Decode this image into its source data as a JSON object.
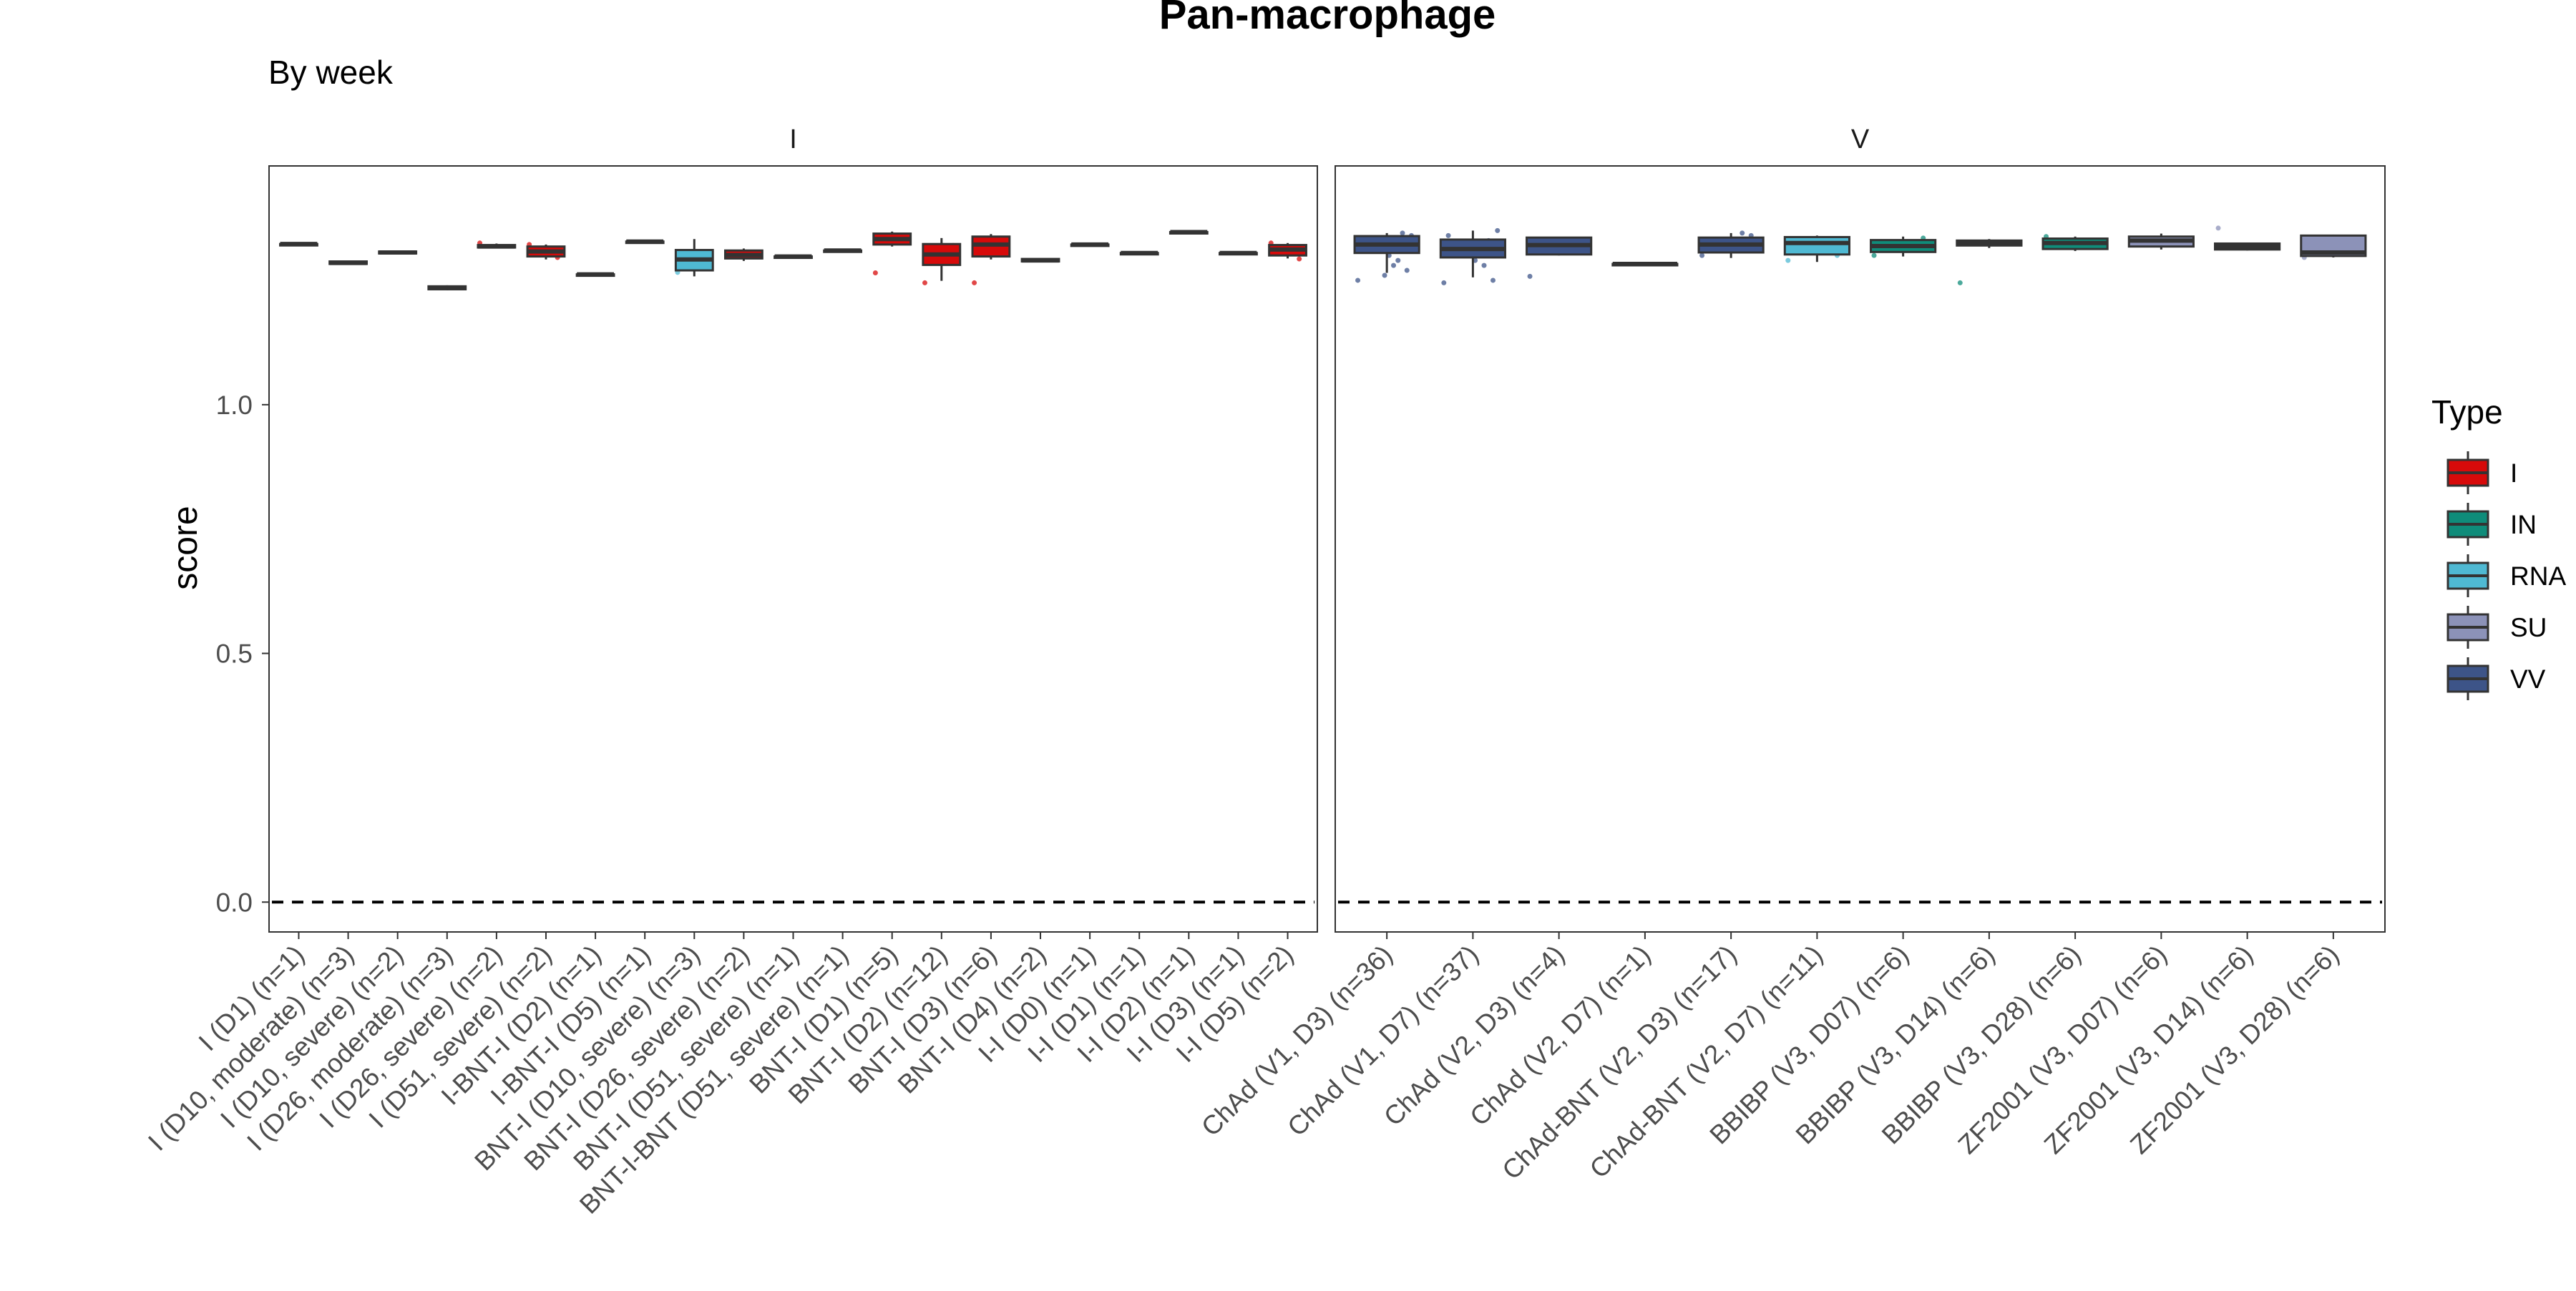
{
  "chart_data": {
    "type": "box",
    "title": "Pan-macrophage",
    "subtitle": "By week",
    "ylabel": "score",
    "xlabel": "",
    "ylim": [
      -0.06,
      1.48
    ],
    "y_ticks": [
      0.0,
      0.5,
      1.0
    ],
    "y_tick_labels": [
      "0.0",
      "0.5",
      "1.0"
    ],
    "reference_line": {
      "y": 0,
      "style": "dashed"
    },
    "grid": false,
    "legend": {
      "title": "Type",
      "placement": "right",
      "items": [
        {
          "label": "I",
          "color": "#D70A0A"
        },
        {
          "label": "IN",
          "color": "#0F8C7A"
        },
        {
          "label": "RNA",
          "color": "#4FB9D3"
        },
        {
          "label": "SU",
          "color": "#8C92B8"
        },
        {
          "label": "VV",
          "color": "#3D5488"
        }
      ]
    },
    "panels": [
      {
        "strip": "I",
        "categories": [
          {
            "label": "I (D1) (n=1)",
            "type": "I",
            "q1": 1.323,
            "median": 1.323,
            "q3": 1.323,
            "lo": 1.323,
            "hi": 1.323,
            "points": []
          },
          {
            "label": "I (D10, moderate) (n=3)",
            "type": "I",
            "q1": 1.283,
            "median": 1.285,
            "q3": 1.288,
            "lo": 1.283,
            "hi": 1.289,
            "points": []
          },
          {
            "label": "I (D10, severe) (n=2)",
            "type": "I",
            "q1": 1.304,
            "median": 1.306,
            "q3": 1.308,
            "lo": 1.303,
            "hi": 1.309,
            "points": []
          },
          {
            "label": "I (D26, moderate) (n=3)",
            "type": "I",
            "q1": 1.232,
            "median": 1.235,
            "q3": 1.238,
            "lo": 1.23,
            "hi": 1.24,
            "points": []
          },
          {
            "label": "I (D26, severe) (n=2)",
            "type": "I",
            "q1": 1.316,
            "median": 1.318,
            "q3": 1.321,
            "lo": 1.315,
            "hi": 1.324,
            "points": [
              1.325
            ]
          },
          {
            "label": "I (D51, severe) (n=2)",
            "type": "I",
            "q1": 1.298,
            "median": 1.308,
            "q3": 1.318,
            "lo": 1.292,
            "hi": 1.322,
            "points": [
              1.322,
              1.296
            ]
          },
          {
            "label": "I-BNT-I (D2) (n=1)",
            "type": "I",
            "q1": 1.262,
            "median": 1.262,
            "q3": 1.262,
            "lo": 1.262,
            "hi": 1.262,
            "points": []
          },
          {
            "label": "I-BNT-I (D5) (n=1)",
            "type": "I",
            "q1": 1.328,
            "median": 1.328,
            "q3": 1.328,
            "lo": 1.328,
            "hi": 1.328,
            "points": []
          },
          {
            "label": "BNT-I (D10, severe) (n=3)",
            "type": "RNA",
            "q1": 1.27,
            "median": 1.292,
            "q3": 1.311,
            "lo": 1.258,
            "hi": 1.333,
            "points": [
              1.266
            ]
          },
          {
            "label": "BNT-I (D26, severe) (n=2)",
            "type": "I",
            "q1": 1.294,
            "median": 1.301,
            "q3": 1.31,
            "lo": 1.289,
            "hi": 1.314,
            "points": []
          },
          {
            "label": "BNT-I (D51, severe) (n=1)",
            "type": "I",
            "q1": 1.298,
            "median": 1.298,
            "q3": 1.298,
            "lo": 1.298,
            "hi": 1.298,
            "points": []
          },
          {
            "label": "BNT-I-BNT (D51, severe) (n=1)",
            "type": "I",
            "q1": 1.31,
            "median": 1.31,
            "q3": 1.31,
            "lo": 1.31,
            "hi": 1.31,
            "points": []
          },
          {
            "label": "BNT-I (D1) (n=5)",
            "type": "I",
            "q1": 1.322,
            "median": 1.333,
            "q3": 1.344,
            "lo": 1.318,
            "hi": 1.348,
            "points": [
              1.265,
              1.335
            ]
          },
          {
            "label": "BNT-I (D2) (n=12)",
            "type": "I",
            "q1": 1.281,
            "median": 1.302,
            "q3": 1.323,
            "lo": 1.249,
            "hi": 1.335,
            "points": [
              1.245,
              1.32,
              1.31,
              1.29
            ]
          },
          {
            "label": "BNT-I (D3) (n=6)",
            "type": "I",
            "q1": 1.298,
            "median": 1.322,
            "q3": 1.338,
            "lo": 1.292,
            "hi": 1.343,
            "points": [
              1.245
            ]
          },
          {
            "label": "BNT-I (D4) (n=2)",
            "type": "I",
            "q1": 1.288,
            "median": 1.29,
            "q3": 1.293,
            "lo": 1.287,
            "hi": 1.294,
            "points": []
          },
          {
            "label": "I-I (D0) (n=1)",
            "type": "I",
            "q1": 1.322,
            "median": 1.322,
            "q3": 1.322,
            "lo": 1.322,
            "hi": 1.322,
            "points": []
          },
          {
            "label": "I-I (D1) (n=1)",
            "type": "I",
            "q1": 1.305,
            "median": 1.305,
            "q3": 1.305,
            "lo": 1.305,
            "hi": 1.305,
            "points": []
          },
          {
            "label": "I-I (D2) (n=1)",
            "type": "I",
            "q1": 1.347,
            "median": 1.347,
            "q3": 1.347,
            "lo": 1.347,
            "hi": 1.347,
            "points": []
          },
          {
            "label": "I-I (D3) (n=1)",
            "type": "I",
            "q1": 1.305,
            "median": 1.305,
            "q3": 1.305,
            "lo": 1.305,
            "hi": 1.305,
            "points": []
          },
          {
            "label": "I-I (D5) (n=2)",
            "type": "I",
            "q1": 1.3,
            "median": 1.312,
            "q3": 1.321,
            "lo": 1.294,
            "hi": 1.325,
            "points": [
              1.325,
              1.293
            ]
          }
        ]
      },
      {
        "strip": "V",
        "categories": [
          {
            "label": "ChAd (V1, D3) (n=36)",
            "type": "VV",
            "q1": 1.305,
            "median": 1.322,
            "q3": 1.339,
            "lo": 1.265,
            "hi": 1.345,
            "points": [
              1.25,
              1.27,
              1.29,
              1.3,
              1.31,
              1.32,
              1.33,
              1.34,
              1.345,
              1.28,
              1.26
            ]
          },
          {
            "label": "ChAd (V1, D7) (n=37)",
            "type": "VV",
            "q1": 1.296,
            "median": 1.313,
            "q3": 1.332,
            "lo": 1.256,
            "hi": 1.35,
            "points": [
              1.245,
              1.25,
              1.28,
              1.29,
              1.3,
              1.32,
              1.34,
              1.35,
              1.33
            ]
          },
          {
            "label": "ChAd (V2, D3) (n=4)",
            "type": "VV",
            "q1": 1.302,
            "median": 1.321,
            "q3": 1.336,
            "lo": 1.3,
            "hi": 1.337,
            "points": [
              1.258
            ]
          },
          {
            "label": "ChAd (V2, D7) (n=1)",
            "type": "VV",
            "q1": 1.283,
            "median": 1.283,
            "q3": 1.283,
            "lo": 1.283,
            "hi": 1.283,
            "points": []
          },
          {
            "label": "ChAd-BNT (V2, D3) (n=17)",
            "type": "VV",
            "q1": 1.306,
            "median": 1.322,
            "q3": 1.336,
            "lo": 1.295,
            "hi": 1.345,
            "points": [
              1.3,
              1.34,
              1.345
            ]
          },
          {
            "label": "ChAd-BNT (V2, D7) (n=11)",
            "type": "RNA",
            "q1": 1.302,
            "median": 1.325,
            "q3": 1.337,
            "lo": 1.287,
            "hi": 1.34,
            "points": [
              1.29,
              1.3
            ]
          },
          {
            "label": "BBIBP (V3, D07) (n=6)",
            "type": "IN",
            "q1": 1.307,
            "median": 1.319,
            "q3": 1.331,
            "lo": 1.298,
            "hi": 1.338,
            "points": [
              1.3,
              1.335
            ]
          },
          {
            "label": "BBIBP (V3, D14) (n=6)",
            "type": "IN",
            "q1": 1.32,
            "median": 1.325,
            "q3": 1.33,
            "lo": 1.315,
            "hi": 1.333,
            "points": [
              1.245
            ]
          },
          {
            "label": "BBIBP (V3, D28) (n=6)",
            "type": "IN",
            "q1": 1.313,
            "median": 1.325,
            "q3": 1.334,
            "lo": 1.309,
            "hi": 1.338,
            "points": [
              1.338
            ]
          },
          {
            "label": "ZF2001 (V3, D07) (n=6)",
            "type": "SU",
            "q1": 1.318,
            "median": 1.33,
            "q3": 1.338,
            "lo": 1.312,
            "hi": 1.344,
            "points": []
          },
          {
            "label": "ZF2001 (V3, D14) (n=6)",
            "type": "SU",
            "q1": 1.312,
            "median": 1.318,
            "q3": 1.324,
            "lo": 1.31,
            "hi": 1.326,
            "points": [
              1.355
            ]
          },
          {
            "label": "ZF2001 (V3, D28) (n=6)",
            "type": "SU",
            "q1": 1.299,
            "median": 1.306,
            "q3": 1.34,
            "lo": 1.296,
            "hi": 1.342,
            "points": [
              1.296
            ]
          }
        ]
      }
    ]
  }
}
